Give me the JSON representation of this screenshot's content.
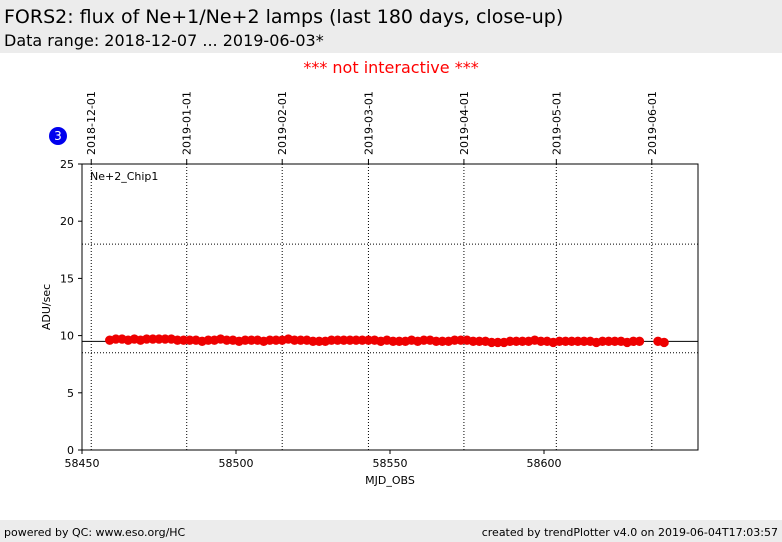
{
  "header": {
    "title": "FORS2: flux of Ne+1/Ne+2 lamps (last 180 days, close-up)",
    "subtitle": "Data range: 2018-12-07 ... 2019-06-03*"
  },
  "notice": "*** not interactive ***",
  "badge": "3",
  "footer": {
    "left": "powered by QC: www.eso.org/HC",
    "right": "created by trendPlotter v4.0 on 2019-06-04T17:03:57"
  },
  "colors": {
    "header_bg": "#ececec",
    "notice": "#ff0000",
    "badge": "#0000ee",
    "points": "#ee0000"
  },
  "chart_data": {
    "type": "scatter",
    "panel_label": "Ne+2_Chip1",
    "xlabel": "MJD_OBS",
    "ylabel": "ADU/sec",
    "xlim": [
      58450,
      58650
    ],
    "ylim": [
      0,
      25
    ],
    "x_ticks": [
      58450,
      58500,
      58550,
      58600
    ],
    "x_tick_labels": [
      "58450",
      "58500",
      "58550",
      "58600"
    ],
    "y_ticks": [
      0,
      5,
      10,
      15,
      20,
      25
    ],
    "y_tick_labels": [
      "0",
      "5",
      "10",
      "15",
      "20",
      "25"
    ],
    "date_ticks": [
      {
        "label": "2018-12-01",
        "mjd": 58453
      },
      {
        "label": "2019-01-01",
        "mjd": 58484
      },
      {
        "label": "2019-02-01",
        "mjd": 58515
      },
      {
        "label": "2019-03-01",
        "mjd": 58543
      },
      {
        "label": "2019-04-01",
        "mjd": 58574
      },
      {
        "label": "2019-05-01",
        "mjd": 58604
      },
      {
        "label": "2019-06-01",
        "mjd": 58635
      }
    ],
    "reference_lines": {
      "mean": 9.5,
      "upper": 18.0,
      "lower": 8.5
    },
    "grid": "vertical dotted at date ticks",
    "series": [
      {
        "x": [
          58459,
          58461,
          58463,
          58465,
          58467,
          58469,
          58471,
          58473,
          58475,
          58477,
          58479,
          58481,
          58483,
          58485,
          58487,
          58489,
          58491,
          58493,
          58495,
          58497,
          58499,
          58501,
          58503,
          58505,
          58507,
          58509,
          58511,
          58513,
          58515,
          58517,
          58519,
          58521,
          58523,
          58525,
          58527,
          58529,
          58531,
          58533,
          58535,
          58537,
          58539,
          58541,
          58543,
          58545,
          58547,
          58549,
          58551,
          58553,
          58555,
          58557,
          58559,
          58561,
          58563,
          58565,
          58567,
          58569,
          58571,
          58573,
          58575,
          58577,
          58579,
          58581,
          58583,
          58585,
          58587,
          58589,
          58591,
          58593,
          58595,
          58597,
          58599,
          58601,
          58603,
          58605,
          58607,
          58609,
          58611,
          58613,
          58615,
          58617,
          58619,
          58621,
          58623,
          58625,
          58627,
          58629,
          58631,
          58637,
          58639
        ],
        "y": [
          9.6,
          9.7,
          9.7,
          9.6,
          9.7,
          9.6,
          9.7,
          9.7,
          9.7,
          9.7,
          9.7,
          9.6,
          9.6,
          9.6,
          9.6,
          9.5,
          9.6,
          9.6,
          9.7,
          9.6,
          9.6,
          9.5,
          9.6,
          9.6,
          9.6,
          9.5,
          9.6,
          9.6,
          9.6,
          9.7,
          9.6,
          9.6,
          9.6,
          9.5,
          9.5,
          9.5,
          9.6,
          9.6,
          9.6,
          9.6,
          9.6,
          9.6,
          9.6,
          9.6,
          9.5,
          9.6,
          9.5,
          9.5,
          9.5,
          9.6,
          9.5,
          9.6,
          9.6,
          9.5,
          9.5,
          9.5,
          9.6,
          9.6,
          9.6,
          9.5,
          9.5,
          9.5,
          9.4,
          9.4,
          9.4,
          9.5,
          9.5,
          9.5,
          9.5,
          9.6,
          9.5,
          9.5,
          9.4,
          9.5,
          9.5,
          9.5,
          9.5,
          9.5,
          9.5,
          9.4,
          9.5,
          9.5,
          9.5,
          9.5,
          9.4,
          9.5,
          9.5,
          9.5,
          9.4
        ]
      }
    ]
  }
}
